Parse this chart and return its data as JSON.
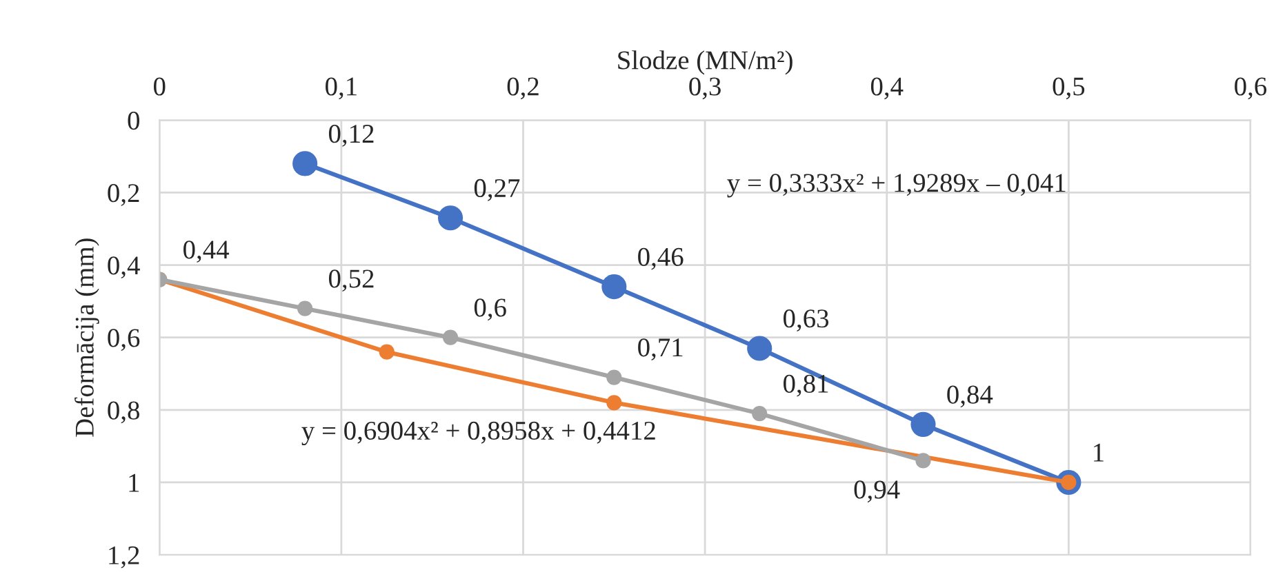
{
  "chart_data": {
    "type": "line",
    "xlabel": "Slodze (MN/m²)",
    "ylabel": "Deformācija (mm)",
    "series": [
      {
        "color": "#4472c4",
        "x": [
          0.08,
          0.16,
          0.25,
          0.33,
          0.42,
          0.5
        ],
        "values": [
          0.12,
          0.27,
          0.46,
          0.63,
          0.84,
          1
        ],
        "value_labels": [
          "0,12",
          "0,27",
          "0,46",
          "0,63",
          "0,84",
          null
        ]
      },
      {
        "color": "#ed7d31",
        "x": [
          0,
          0.125,
          0.25,
          0.5
        ],
        "values": [
          0.44,
          0.64,
          0.78,
          1
        ],
        "value_labels": [
          null,
          null,
          null,
          "1"
        ]
      },
      {
        "color": "#a5a5a5",
        "x": [
          0,
          0.08,
          0.16,
          0.25,
          0.33,
          0.42
        ],
        "values": [
          0.44,
          0.52,
          0.6,
          0.71,
          0.81,
          0.94
        ],
        "value_labels": [
          "0,44",
          "0,52",
          "0,6",
          "0,71",
          "0,81",
          "0,94"
        ]
      }
    ],
    "annotations": [
      "y = 0,3333x² + 1,9289x – 0,041",
      "y = 0,6904x² + 0,8958x + 0,4412"
    ],
    "xlim": [
      0,
      0.6
    ],
    "xticks": [
      0,
      {
        "value": 0.1,
        "label": "0,1"
      },
      {
        "value": 0.2,
        "label": "0,2"
      },
      {
        "value": 0.3,
        "label": "0,3"
      },
      {
        "value": 0.4,
        "label": "0,4"
      },
      {
        "value": 0.5,
        "label": "0,5"
      },
      {
        "value": 0.6,
        "label": "0,6"
      }
    ],
    "ylim": [
      1.2,
      0
    ],
    "yticks": [
      0,
      {
        "value": 0.2,
        "label": "0,2"
      },
      {
        "value": 0.4,
        "label": "0,4"
      },
      {
        "value": 0.6,
        "label": "0,6"
      },
      {
        "value": 0.8,
        "label": "0,8"
      },
      1,
      {
        "value": 1.2,
        "label": "1,2"
      }
    ],
    "grid": true,
    "marker": "circle",
    "line_style": "solid",
    "legend": false
  }
}
